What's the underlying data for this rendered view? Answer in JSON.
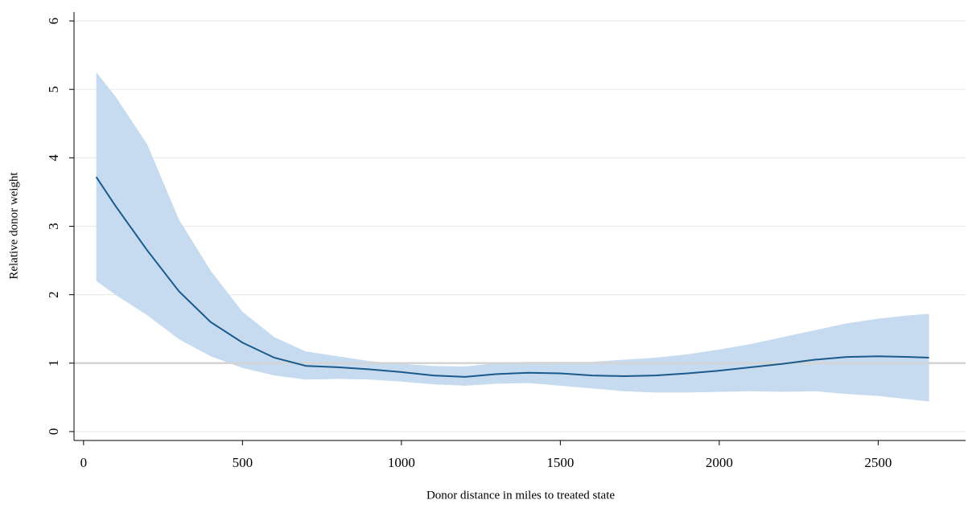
{
  "chart_data": {
    "type": "line",
    "x_label": "Donor distance in miles to treated state",
    "y_label": "Relative donor weight",
    "x": [
      40,
      100,
      200,
      300,
      400,
      500,
      600,
      700,
      800,
      900,
      1000,
      1100,
      1200,
      1300,
      1400,
      1500,
      1600,
      1700,
      1800,
      1900,
      2000,
      2100,
      2200,
      2300,
      2400,
      2500,
      2600,
      2660
    ],
    "values": [
      3.72,
      3.3,
      2.65,
      2.05,
      1.6,
      1.3,
      1.08,
      0.96,
      0.94,
      0.91,
      0.87,
      0.82,
      0.8,
      0.84,
      0.86,
      0.85,
      0.82,
      0.81,
      0.82,
      0.85,
      0.89,
      0.94,
      0.99,
      1.05,
      1.09,
      1.1,
      1.09,
      1.08
    ],
    "upper": [
      5.25,
      4.9,
      4.2,
      3.1,
      2.35,
      1.75,
      1.38,
      1.17,
      1.1,
      1.03,
      0.99,
      0.96,
      0.95,
      1.0,
      1.02,
      1.02,
      1.02,
      1.05,
      1.08,
      1.13,
      1.2,
      1.28,
      1.38,
      1.48,
      1.58,
      1.65,
      1.7,
      1.72
    ],
    "lower": [
      2.2,
      2.0,
      1.7,
      1.35,
      1.1,
      0.93,
      0.82,
      0.76,
      0.77,
      0.76,
      0.73,
      0.69,
      0.67,
      0.7,
      0.71,
      0.67,
      0.63,
      0.59,
      0.57,
      0.57,
      0.58,
      0.59,
      0.58,
      0.59,
      0.55,
      0.52,
      0.47,
      0.44
    ],
    "color": "#1a5a8c",
    "band_color": "#c6dbef",
    "xlim": [
      -30,
      2775
    ],
    "ylim": [
      -0.13,
      6.13
    ],
    "xticks": [
      0,
      500,
      1000,
      1500,
      2000,
      2500
    ],
    "yticks": [
      0,
      1,
      2,
      3,
      4,
      5,
      6
    ],
    "grid": true,
    "reference_line": 1
  }
}
